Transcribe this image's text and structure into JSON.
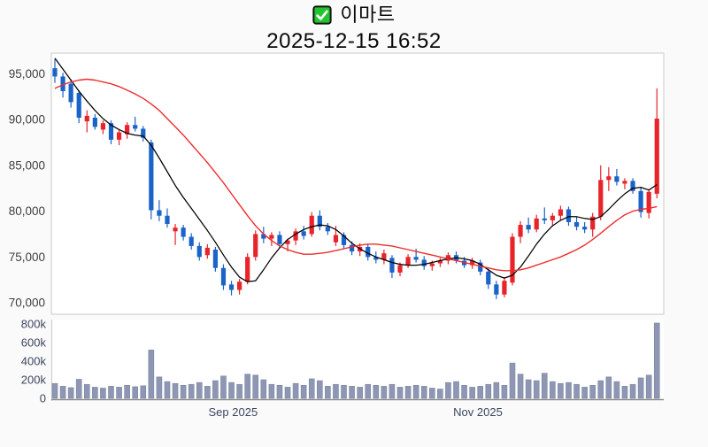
{
  "header": {
    "title": "이마트",
    "timestamp": "2025-12-15 16:52",
    "check_icon": "checkbox-checked"
  },
  "colors": {
    "figure_bg": "#fafafa",
    "plot_bg": "#ffffff",
    "plot_border": "#c9c9c9",
    "axis_line": "#8a8a8a",
    "price_label": "#3d3d3d",
    "slate_label": "#3c4660",
    "check_green": "#23c52e",
    "up_red": "#e8232a",
    "down_blue": "#1a63c8",
    "ma_short_black": "#000000",
    "ma_long_red": "#ee2c2c",
    "volume_bar": "#8d96b2",
    "volume_bar_edge": "#7d87a6"
  },
  "chart_data": {
    "type": "candlestick",
    "title": "이마트",
    "subtitle": "2025-12-15 16:52",
    "legend": "none",
    "grid": false,
    "price_axis": {
      "range": [
        68750,
        97250
      ],
      "ticks": [
        {
          "label": "95,000",
          "value": 95000
        },
        {
          "label": "90,000",
          "value": 90000
        },
        {
          "label": "85,000",
          "value": 85000
        },
        {
          "label": "80,000",
          "value": 80000
        },
        {
          "label": "75,000",
          "value": 75000
        },
        {
          "label": "70,000",
          "value": 70000
        }
      ]
    },
    "volume_axis": {
      "max": 800000,
      "ticks": [
        {
          "label": "800k",
          "value": 800000
        },
        {
          "label": "600k",
          "value": 600000
        },
        {
          "label": "400k",
          "value": 400000
        },
        {
          "label": "200k",
          "value": 200000
        },
        {
          "label": "0",
          "value": 0
        }
      ]
    },
    "x_axis": {
      "ticks": [
        {
          "label": "Sep 2025",
          "index": 22.2
        },
        {
          "label": "Nov 2025",
          "index": 52.7
        }
      ]
    },
    "candles_format": [
      "open",
      "high",
      "low",
      "close",
      "volume"
    ],
    "candles": [
      [
        95600,
        96600,
        94000,
        94700,
        160000
      ],
      [
        94700,
        95100,
        92400,
        93100,
        130000
      ],
      [
        93900,
        94400,
        91300,
        91900,
        115000
      ],
      [
        92900,
        93200,
        89600,
        90200,
        205000
      ],
      [
        89800,
        91000,
        88600,
        90400,
        150000
      ],
      [
        90200,
        90600,
        88900,
        89200,
        120000
      ],
      [
        88900,
        89900,
        88400,
        89600,
        110000
      ],
      [
        89600,
        89900,
        87300,
        87800,
        130000
      ],
      [
        87800,
        88900,
        87200,
        88600,
        120000
      ],
      [
        88400,
        89700,
        87900,
        89400,
        140000
      ],
      [
        89400,
        90300,
        88700,
        89000,
        125000
      ],
      [
        89000,
        89300,
        87600,
        88000,
        135000
      ],
      [
        87500,
        87800,
        79100,
        80100,
        520000
      ],
      [
        80100,
        81200,
        78900,
        79500,
        230000
      ],
      [
        79500,
        80300,
        78200,
        78600,
        180000
      ],
      [
        77800,
        78600,
        76300,
        78200,
        160000
      ],
      [
        78200,
        78500,
        76800,
        77200,
        140000
      ],
      [
        77200,
        77600,
        75800,
        76200,
        150000
      ],
      [
        76200,
        76600,
        74600,
        75000,
        170000
      ],
      [
        75200,
        76400,
        74800,
        76000,
        130000
      ],
      [
        75800,
        76100,
        73400,
        73800,
        190000
      ],
      [
        73800,
        74200,
        71400,
        71900,
        240000
      ],
      [
        72000,
        72400,
        70800,
        71400,
        170000
      ],
      [
        71400,
        72600,
        70900,
        72300,
        150000
      ],
      [
        72300,
        75400,
        72000,
        75000,
        260000
      ],
      [
        75000,
        77900,
        74600,
        77500,
        250000
      ],
      [
        77500,
        78300,
        76500,
        77000,
        200000
      ],
      [
        77000,
        77700,
        76200,
        77400,
        150000
      ],
      [
        77400,
        77800,
        76000,
        76400,
        140000
      ],
      [
        76400,
        77000,
        75600,
        76800,
        120000
      ],
      [
        76800,
        78100,
        76300,
        77800,
        160000
      ],
      [
        77800,
        78400,
        76900,
        77300,
        140000
      ],
      [
        77500,
        79900,
        77200,
        79500,
        210000
      ],
      [
        79500,
        80100,
        77900,
        78300,
        190000
      ],
      [
        78300,
        78700,
        77400,
        77800,
        130000
      ],
      [
        76600,
        78400,
        76200,
        77400,
        150000
      ],
      [
        77400,
        77700,
        75900,
        76300,
        140000
      ],
      [
        76300,
        76700,
        75200,
        75600,
        130000
      ],
      [
        75600,
        76500,
        75100,
        76100,
        120000
      ],
      [
        76100,
        76400,
        74600,
        75000,
        150000
      ],
      [
        75000,
        75600,
        74300,
        74700,
        140000
      ],
      [
        74700,
        75800,
        74200,
        75400,
        130000
      ],
      [
        74900,
        75200,
        72700,
        73300,
        150000
      ],
      [
        73300,
        74400,
        72900,
        74100,
        120000
      ],
      [
        74100,
        75300,
        73800,
        75000,
        130000
      ],
      [
        75000,
        75900,
        74400,
        74700,
        140000
      ],
      [
        74700,
        75100,
        73600,
        74000,
        130000
      ],
      [
        74000,
        74600,
        73500,
        74300,
        110000
      ],
      [
        74300,
        74900,
        73900,
        74600,
        100000
      ],
      [
        74600,
        75500,
        74200,
        75200,
        170000
      ],
      [
        75200,
        75600,
        74300,
        74600,
        180000
      ],
      [
        74600,
        75000,
        73800,
        74100,
        140000
      ],
      [
        74100,
        74900,
        73700,
        74600,
        120000
      ],
      [
        74400,
        74700,
        73000,
        73400,
        130000
      ],
      [
        73400,
        73700,
        71500,
        72000,
        150000
      ],
      [
        72000,
        72400,
        70400,
        70900,
        170000
      ],
      [
        70900,
        72800,
        70600,
        72400,
        140000
      ],
      [
        72200,
        77600,
        71900,
        77200,
        380000
      ],
      [
        77200,
        78900,
        76500,
        78500,
        260000
      ],
      [
        78500,
        79300,
        77600,
        78000,
        200000
      ],
      [
        78000,
        79600,
        77700,
        79200,
        190000
      ],
      [
        79200,
        80400,
        78600,
        79000,
        270000
      ],
      [
        79000,
        79800,
        78400,
        79500,
        180000
      ],
      [
        79500,
        80600,
        79000,
        80200,
        160000
      ],
      [
        80200,
        80500,
        78400,
        78800,
        170000
      ],
      [
        78800,
        79400,
        77900,
        78300,
        150000
      ],
      [
        78300,
        78800,
        77600,
        78000,
        120000
      ],
      [
        78000,
        79800,
        77200,
        79400,
        140000
      ],
      [
        79400,
        85000,
        79000,
        83400,
        190000
      ],
      [
        83400,
        84800,
        82200,
        83800,
        230000
      ],
      [
        83800,
        84600,
        82800,
        83200,
        180000
      ],
      [
        83000,
        83600,
        82400,
        83300,
        130000
      ],
      [
        83300,
        83600,
        81900,
        82200,
        150000
      ],
      [
        82200,
        82600,
        79300,
        79900,
        220000
      ],
      [
        79800,
        82400,
        79200,
        82100,
        250000
      ],
      [
        81900,
        93400,
        81400,
        90100,
        810000
      ]
    ],
    "ma_short": [
      96700,
      95500,
      94300,
      93100,
      92000,
      91000,
      90100,
      89400,
      88900,
      88500,
      88300,
      88200,
      87200,
      85800,
      84300,
      82800,
      81500,
      80300,
      79100,
      77900,
      76600,
      75200,
      73900,
      72800,
      72300,
      72400,
      73600,
      74900,
      76000,
      76900,
      77500,
      78000,
      78300,
      78500,
      78400,
      78000,
      77300,
      76500,
      75900,
      75400,
      75000,
      74700,
      74400,
      74200,
      74100,
      74100,
      74200,
      74400,
      74600,
      74800,
      74900,
      74800,
      74600,
      74200,
      73600,
      73000,
      72700,
      73000,
      73900,
      75100,
      76400,
      77500,
      78400,
      79000,
      79400,
      79400,
      79200,
      79100,
      79400,
      80200,
      81100,
      81900,
      82500,
      82600,
      82300,
      82900
    ],
    "ma_long": [
      93400,
      93800,
      94100,
      94300,
      94400,
      94300,
      94100,
      93900,
      93600,
      93200,
      92800,
      92300,
      91700,
      91000,
      90100,
      89200,
      88300,
      87300,
      86300,
      85300,
      84200,
      83100,
      81900,
      80700,
      79500,
      78400,
      77500,
      76800,
      76200,
      75800,
      75500,
      75300,
      75300,
      75400,
      75500,
      75700,
      75900,
      76100,
      76300,
      76400,
      76400,
      76300,
      76200,
      76000,
      75800,
      75600,
      75400,
      75200,
      75000,
      74800,
      74600,
      74400,
      74200,
      74000,
      73800,
      73600,
      73500,
      73500,
      73600,
      73800,
      74100,
      74400,
      74700,
      75000,
      75400,
      75800,
      76300,
      76900,
      77600,
      78300,
      79000,
      79600,
      80000,
      80200,
      80300,
      80500
    ]
  }
}
